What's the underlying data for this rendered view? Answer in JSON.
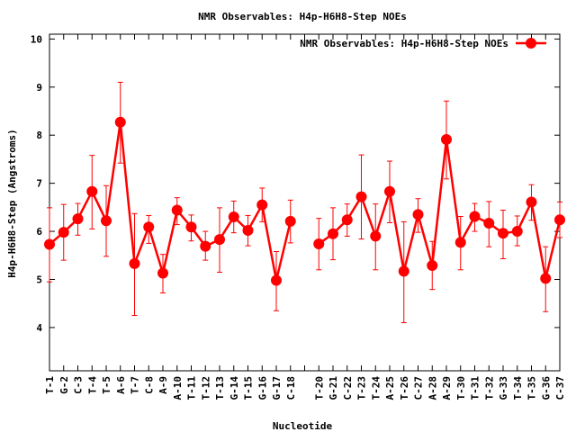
{
  "chart_data": {
    "type": "line",
    "title": "NMR Observables: H4p-H6H8-Step NOEs",
    "xlabel": "Nucleotide",
    "ylabel": "H4p-H6H8-Step (Angstroms)",
    "ylim": [
      3.1,
      10.1
    ],
    "yticks": [
      "4",
      "5",
      "6",
      "7",
      "8",
      "9",
      "10"
    ],
    "legend_position": "top-right",
    "grid": false,
    "categories": [
      "T-1",
      "G-2",
      "C-3",
      "T-4",
      "T-5",
      "A-6",
      "T-7",
      "C-8",
      "A-9",
      "A-10",
      "T-11",
      "T-12",
      "T-13",
      "G-14",
      "T-15",
      "G-16",
      "G-17",
      "C-18",
      "",
      "T-20",
      "G-21",
      "C-22",
      "T-23",
      "T-24",
      "A-25",
      "T-26",
      "C-27",
      "A-28",
      "A-29",
      "T-30",
      "T-31",
      "T-32",
      "G-33",
      "T-34",
      "T-35",
      "G-36",
      "C-37"
    ],
    "series": [
      {
        "name": "NMR Observables: H4p-H6H8-Step NOEs",
        "color": "#ff0000",
        "values": [
          5.73,
          5.98,
          6.26,
          6.83,
          6.22,
          8.27,
          5.33,
          6.09,
          5.13,
          6.44,
          6.09,
          5.69,
          5.83,
          6.3,
          6.02,
          6.55,
          4.98,
          6.21,
          null,
          5.74,
          5.95,
          6.24,
          6.72,
          5.9,
          6.83,
          5.17,
          6.35,
          5.29,
          7.91,
          5.77,
          6.31,
          6.17,
          5.96,
          6.0,
          6.61,
          5.02,
          6.24
        ],
        "err_low": [
          4.95,
          5.4,
          5.92,
          6.05,
          5.48,
          7.42,
          4.25,
          5.75,
          4.72,
          6.14,
          5.8,
          5.4,
          5.15,
          5.97,
          5.7,
          6.2,
          4.35,
          5.76,
          null,
          5.2,
          5.41,
          5.9,
          5.84,
          5.2,
          6.18,
          4.1,
          5.98,
          4.79,
          7.09,
          5.2,
          6.0,
          5.68,
          5.43,
          5.7,
          6.23,
          4.33,
          5.87
        ],
        "err_high": [
          6.49,
          6.56,
          6.58,
          7.58,
          6.95,
          9.1,
          6.37,
          6.33,
          5.52,
          6.7,
          6.34,
          6.0,
          6.49,
          6.63,
          6.33,
          6.9,
          5.58,
          6.65,
          null,
          6.27,
          6.49,
          6.57,
          7.59,
          6.57,
          7.46,
          6.2,
          6.68,
          5.79,
          8.71,
          6.31,
          6.58,
          6.62,
          6.44,
          6.32,
          6.97,
          5.68,
          6.61
        ]
      }
    ]
  }
}
